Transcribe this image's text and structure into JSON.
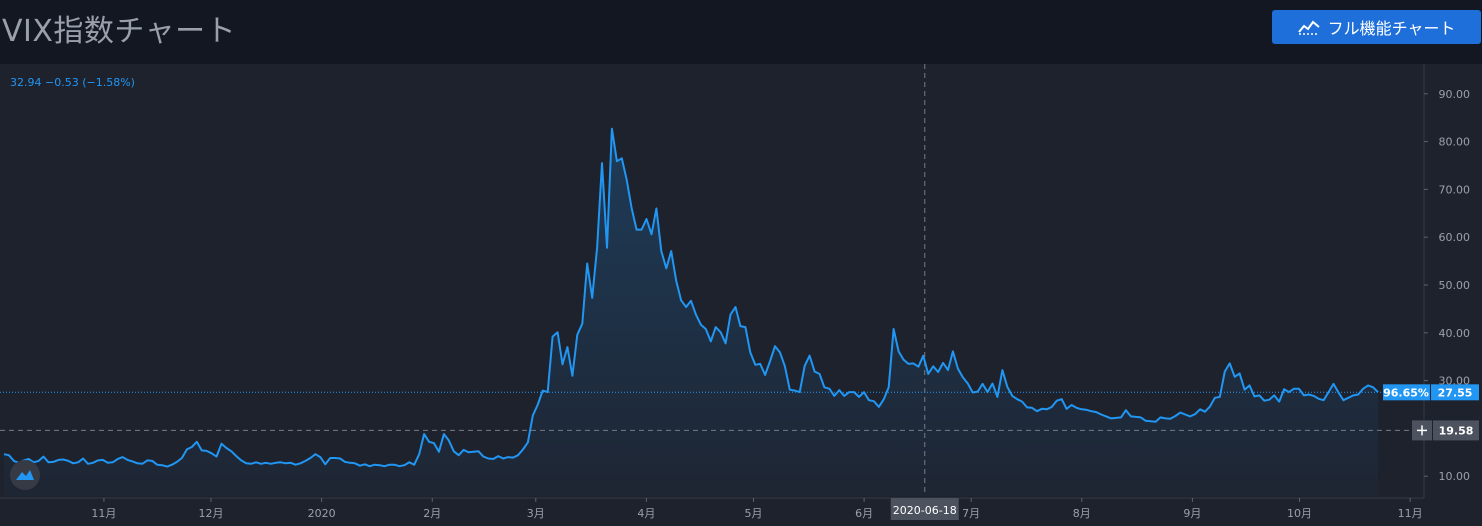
{
  "page": {
    "title": "VIX指数チャート",
    "full_button_label": "フル機能チャート",
    "full_button_icon": "chart-line-icon"
  },
  "legend": {
    "ohlc_text": "32.94  −0.53  (−1.58%)"
  },
  "colors": {
    "background": "#131722",
    "chart_bg": "#1e222d",
    "line": "#2196f3",
    "accent_button": "#1e6fd9",
    "axis_text": "#9aa0ab",
    "crosshair_label_bg": "#4c525e"
  },
  "chart_data": {
    "type": "area",
    "title": "VIX指数チャート",
    "ylim": [
      6,
      95
    ],
    "y_ticks": [
      "10.00",
      "20.00",
      "30.00",
      "40.00",
      "50.00",
      "60.00",
      "70.00",
      "80.00",
      "90.00"
    ],
    "x_ticks": [
      "11月",
      "12月",
      "2020",
      "2月",
      "3月",
      "4月",
      "5月",
      "6月",
      "7月",
      "8月",
      "9月",
      "10月",
      "11月"
    ],
    "grid": false,
    "series": [
      {
        "x_start": "2019-10-04",
        "x_end": "2020-10-23",
        "values": [
          14.6,
          14.4,
          13.2,
          12.8,
          13.3,
          13.6,
          12.9,
          13.2,
          14.1,
          12.9,
          13.0,
          13.4,
          13.5,
          13.2,
          12.7,
          12.9,
          13.7,
          12.6,
          12.8,
          13.3,
          13.4,
          12.8,
          12.9,
          13.6,
          14.0,
          13.4,
          13.1,
          12.7,
          12.6,
          13.3,
          13.2,
          12.4,
          12.3,
          12.0,
          12.4,
          13.0,
          13.8,
          15.6,
          16.1,
          17.2,
          15.4,
          15.3,
          14.8,
          14.1,
          16.8,
          15.9,
          15.2,
          14.2,
          13.3,
          12.7,
          12.6,
          12.9,
          12.6,
          12.8,
          12.6,
          12.8,
          12.9,
          12.7,
          12.8,
          12.4,
          12.7,
          13.2,
          13.8,
          14.6,
          14.0,
          12.5,
          13.8,
          13.8,
          13.7,
          13.0,
          12.8,
          12.7,
          12.2,
          12.5,
          12.1,
          12.4,
          12.3,
          12.1,
          12.4,
          12.4,
          12.1,
          12.3,
          12.9,
          12.4,
          14.6,
          18.8,
          17.2,
          16.9,
          15.1,
          18.8,
          17.5,
          15.2,
          14.4,
          15.5,
          15.0,
          15.1,
          15.2,
          14.1,
          13.7,
          13.6,
          14.2,
          13.7,
          14.0,
          13.9,
          14.4,
          15.6,
          17.1,
          22.7,
          25.0,
          27.9,
          27.6,
          39.2,
          40.1,
          33.4,
          37.0,
          31.0,
          39.6,
          41.9,
          54.5,
          47.3,
          57.8,
          75.5,
          57.8,
          82.7,
          75.9,
          76.5,
          72.0,
          66.0,
          61.6,
          61.6,
          63.8,
          60.6,
          66.0,
          57.1,
          53.5,
          57.1,
          50.9,
          46.8,
          45.4,
          46.7,
          43.8,
          41.7,
          40.8,
          38.2,
          41.2,
          40.1,
          37.8,
          43.8,
          45.4,
          41.4,
          41.2,
          35.9,
          33.3,
          33.5,
          31.2,
          34.1,
          37.2,
          35.9,
          33.0,
          28.1,
          27.9,
          27.6,
          33.1,
          35.2,
          31.9,
          31.4,
          28.6,
          28.3,
          26.8,
          28.0,
          26.8,
          27.6,
          27.6,
          26.6,
          27.6,
          25.9,
          25.7,
          24.5,
          26.1,
          28.6,
          40.8,
          36.1,
          34.4,
          33.5,
          33.6,
          32.9,
          35.2,
          31.4,
          33.0,
          31.8,
          33.7,
          32.2,
          36.1,
          32.5,
          30.7,
          29.4,
          27.5,
          27.7,
          29.3,
          27.6,
          29.4,
          26.6,
          32.2,
          28.7,
          26.8,
          26.1,
          25.6,
          24.4,
          24.3,
          23.6,
          24.1,
          24.0,
          24.5,
          25.8,
          26.1,
          24.1,
          24.9,
          24.3,
          24.0,
          23.9,
          23.6,
          23.4,
          22.9,
          22.5,
          22.1,
          22.2,
          22.3,
          23.8,
          22.5,
          22.4,
          22.3,
          21.6,
          21.5,
          21.4,
          22.3,
          22.1,
          22.0,
          22.6,
          23.3,
          22.9,
          22.5,
          23.0,
          24.0,
          23.5,
          24.6,
          26.4,
          26.6,
          31.9,
          33.6,
          30.8,
          31.5,
          28.1,
          29.0,
          26.7,
          26.9,
          25.8,
          26.0,
          26.9,
          25.6,
          28.2,
          27.6,
          28.3,
          28.3,
          26.9,
          27.1,
          26.8,
          26.2,
          25.9,
          27.6,
          29.3,
          27.5,
          25.9,
          26.4,
          26.9,
          27.1,
          28.3,
          29.0,
          28.6,
          27.6
        ]
      }
    ],
    "last_value_label": "27.55",
    "last_value_pct": "96.65%",
    "crosshair_value": "19.58",
    "crosshair_date": "2020-06-18"
  }
}
